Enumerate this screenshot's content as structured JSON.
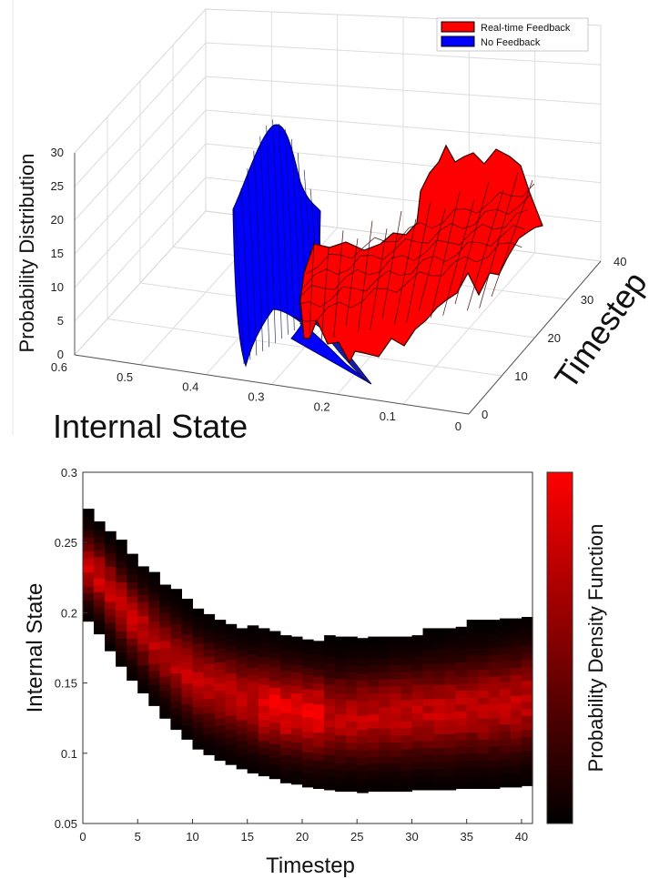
{
  "chart_data": [
    {
      "type": "surface3d",
      "xlabel": "Internal State",
      "ylabel": "Timestep",
      "zlabel": "Probability Distribution",
      "xlim": [
        0,
        0.6
      ],
      "ylim": [
        0,
        40
      ],
      "zlim": [
        0,
        30
      ],
      "xticks": [
        "0.6",
        "0.5",
        "0.4",
        "0.3",
        "0.2",
        "0.1",
        "0"
      ],
      "yticks": [
        "0",
        "10",
        "20",
        "30",
        "40"
      ],
      "zticks": [
        "0",
        "5",
        "10",
        "15",
        "20",
        "25",
        "30"
      ],
      "grid": true,
      "legend": {
        "position": "top-right",
        "entries": [
          "Real-time Feedback",
          "No Feedback"
        ]
      },
      "series": [
        {
          "name": "Real-time Feedback",
          "color": "#ff0000"
        },
        {
          "name": "No Feedback",
          "color": "#0000ff"
        }
      ],
      "peaks": {
        "no_feedback_peak": {
          "state": 0.28,
          "timestep": 0,
          "value": 29
        },
        "realtime_feedback_max": {
          "state": 0.13,
          "timestep": 35,
          "value": 23
        }
      }
    },
    {
      "type": "heatmap",
      "xlabel": "Timestep",
      "ylabel": "Internal State",
      "colorbar_label": "Probability Density Function",
      "xlim": [
        0,
        41
      ],
      "ylim": [
        0.05,
        0.3
      ],
      "xticks": [
        "0",
        "5",
        "10",
        "15",
        "20",
        "25",
        "30",
        "35",
        "40"
      ],
      "yticks": [
        "0.05",
        "0.1",
        "0.15",
        "0.2",
        "0.25",
        "0.3"
      ],
      "colormap": [
        "#000000",
        "#ff0000"
      ],
      "center": [
        0.232,
        0.225,
        0.215,
        0.205,
        0.196,
        0.188,
        0.18,
        0.172,
        0.165,
        0.158,
        0.152,
        0.148,
        0.145,
        0.142,
        0.139,
        0.137,
        0.135,
        0.133,
        0.131,
        0.13,
        0.128,
        0.127,
        0.127,
        0.126,
        0.126,
        0.126,
        0.127,
        0.127,
        0.128,
        0.128,
        0.129,
        0.13,
        0.13,
        0.131,
        0.132,
        0.133,
        0.133,
        0.134,
        0.135,
        0.136,
        0.137
      ],
      "halfwidth": [
        0.038,
        0.04,
        0.042,
        0.043,
        0.044,
        0.045,
        0.046,
        0.047,
        0.048,
        0.048,
        0.049,
        0.049,
        0.05,
        0.05,
        0.05,
        0.051,
        0.051,
        0.051,
        0.052,
        0.052,
        0.052,
        0.052,
        0.053,
        0.053,
        0.053,
        0.054,
        0.054,
        0.054,
        0.055,
        0.055,
        0.055,
        0.056,
        0.056,
        0.057,
        0.057,
        0.058,
        0.058,
        0.059,
        0.059,
        0.06,
        0.06
      ]
    }
  ]
}
